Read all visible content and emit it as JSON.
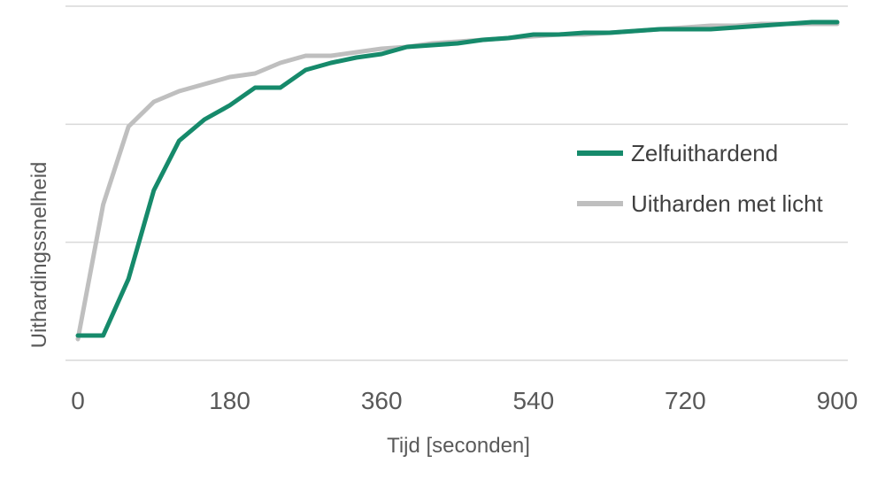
{
  "chart_data": {
    "type": "line",
    "xlabel": "Tijd [seconden]",
    "ylabel": "Uithardingssnelheid",
    "xlim": [
      0,
      900
    ],
    "ylim": [
      0,
      1
    ],
    "xticks": [
      "0",
      "180",
      "360",
      "540",
      "720",
      "900"
    ],
    "grid": true,
    "legend_position": "right",
    "series": [
      {
        "name": "Zelfuithardend",
        "color": "#168a6b",
        "points": [
          [
            0,
            0.07
          ],
          [
            30,
            0.07
          ],
          [
            60,
            0.23
          ],
          [
            90,
            0.48
          ],
          [
            120,
            0.62
          ],
          [
            150,
            0.68
          ],
          [
            180,
            0.72
          ],
          [
            210,
            0.77
          ],
          [
            240,
            0.77
          ],
          [
            270,
            0.82
          ],
          [
            300,
            0.84
          ],
          [
            330,
            0.855
          ],
          [
            360,
            0.865
          ],
          [
            390,
            0.885
          ],
          [
            420,
            0.89
          ],
          [
            450,
            0.895
          ],
          [
            480,
            0.905
          ],
          [
            510,
            0.91
          ],
          [
            540,
            0.92
          ],
          [
            570,
            0.92
          ],
          [
            600,
            0.925
          ],
          [
            630,
            0.925
          ],
          [
            660,
            0.93
          ],
          [
            690,
            0.935
          ],
          [
            720,
            0.935
          ],
          [
            750,
            0.935
          ],
          [
            780,
            0.94
          ],
          [
            810,
            0.945
          ],
          [
            840,
            0.95
          ],
          [
            870,
            0.955
          ],
          [
            900,
            0.955
          ]
        ]
      },
      {
        "name": "Uitharden met licht",
        "color": "#bfbfbf",
        "points": [
          [
            0,
            0.06
          ],
          [
            30,
            0.44
          ],
          [
            60,
            0.66
          ],
          [
            90,
            0.73
          ],
          [
            120,
            0.76
          ],
          [
            150,
            0.78
          ],
          [
            180,
            0.8
          ],
          [
            210,
            0.81
          ],
          [
            240,
            0.84
          ],
          [
            270,
            0.86
          ],
          [
            300,
            0.86
          ],
          [
            330,
            0.87
          ],
          [
            360,
            0.88
          ],
          [
            390,
            0.885
          ],
          [
            420,
            0.895
          ],
          [
            450,
            0.9
          ],
          [
            480,
            0.905
          ],
          [
            510,
            0.91
          ],
          [
            540,
            0.915
          ],
          [
            570,
            0.92
          ],
          [
            600,
            0.92
          ],
          [
            630,
            0.925
          ],
          [
            660,
            0.93
          ],
          [
            690,
            0.935
          ],
          [
            720,
            0.94
          ],
          [
            750,
            0.945
          ],
          [
            780,
            0.945
          ],
          [
            810,
            0.95
          ],
          [
            840,
            0.95
          ],
          [
            870,
            0.95
          ],
          [
            900,
            0.95
          ]
        ]
      }
    ]
  }
}
